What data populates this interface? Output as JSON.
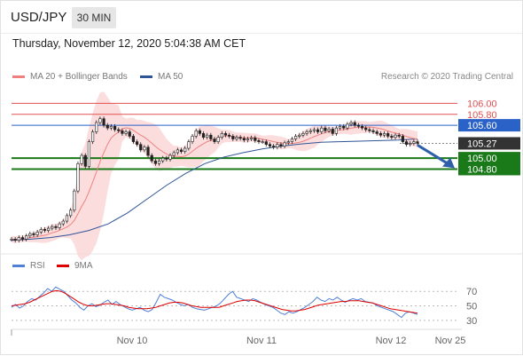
{
  "header": {
    "symbol": "USD/JPY",
    "timeframe": "30 MIN"
  },
  "datetime": "Thursday, November 12, 2020 5:04:38 AM CET",
  "legend": {
    "ma20_label": "MA 20 + Bollinger Bands",
    "ma50_label": "MA 50",
    "credit": "Research © 2020 Trading Central"
  },
  "rsi_legend": {
    "rsi_label": "RSI",
    "ma_label": "9MA"
  },
  "colors": {
    "ma20": "#f08080",
    "ma50": "#2f5597",
    "rsi": "#4f7fd6",
    "rsi_ma": "#dd0000",
    "support": "#1a7a1a",
    "resistance": "#e05050",
    "pivot": "#2a62c8",
    "price": "#333333"
  },
  "chart_data": [
    {
      "type": "line",
      "title": "USD/JPY",
      "ylim": [
        103.3,
        106.25
      ],
      "x_labels": [
        "Nov 10",
        "Nov 11",
        "Nov 12",
        "Nov 25"
      ],
      "close_series": [
        103.52,
        103.5,
        103.55,
        103.52,
        103.58,
        103.62,
        103.6,
        103.65,
        103.7,
        103.68,
        103.72,
        103.75,
        103.73,
        103.8,
        103.85,
        103.95,
        104.05,
        104.4,
        104.9,
        105.05,
        104.85,
        105.3,
        105.48,
        105.65,
        105.72,
        105.6,
        105.55,
        105.58,
        105.52,
        105.5,
        105.45,
        105.48,
        105.4,
        105.3,
        105.25,
        105.15,
        105.2,
        105.05,
        104.95,
        104.9,
        104.95,
        105.0,
        104.98,
        105.05,
        105.1,
        105.15,
        105.12,
        105.18,
        105.3,
        105.4,
        105.5,
        105.45,
        105.38,
        105.42,
        105.35,
        105.3,
        105.38,
        105.45,
        105.42,
        105.4,
        105.35,
        105.38,
        105.36,
        105.33,
        105.35,
        105.37,
        105.32,
        105.3,
        105.3,
        105.25,
        105.22,
        105.2,
        105.25,
        105.22,
        105.28,
        105.3,
        105.35,
        105.4,
        105.42,
        105.45,
        105.48,
        105.5,
        105.52,
        105.48,
        105.55,
        105.5,
        105.53,
        105.45,
        105.55,
        105.58,
        105.55,
        105.62,
        105.65,
        105.6,
        105.58,
        105.55,
        105.52,
        105.5,
        105.48,
        105.45,
        105.42,
        105.45,
        105.4,
        105.38,
        105.42,
        105.4,
        105.3,
        105.25,
        105.27,
        105.3,
        105.27
      ],
      "ma50_series": [
        103.5,
        103.52,
        103.55,
        103.6,
        103.68,
        103.8,
        104.0,
        104.25,
        104.5,
        104.72,
        104.9,
        105.02,
        105.1,
        105.17,
        105.22,
        105.26,
        105.29,
        105.3,
        105.31,
        105.32,
        105.33,
        105.35
      ],
      "bollinger_band_upper_peak": 105.78,
      "bollinger_band_lower_trough": 103.3,
      "levels": [
        {
          "value": 106.0,
          "label": "106.00",
          "kind": "resistance"
        },
        {
          "value": 105.8,
          "label": "105.80",
          "kind": "resistance"
        },
        {
          "value": 105.6,
          "label": "105.60",
          "kind": "pivot"
        },
        {
          "value": 105.27,
          "label": "105.27",
          "kind": "price"
        },
        {
          "value": 105.0,
          "label": "105.00",
          "kind": "support"
        },
        {
          "value": 104.8,
          "label": "104.80",
          "kind": "support"
        }
      ],
      "forecast": {
        "from": 105.27,
        "to": 104.8
      }
    },
    {
      "type": "line",
      "title": "RSI",
      "ylim": [
        20,
        85
      ],
      "y_ticks": [
        70,
        50,
        30
      ],
      "series": [
        {
          "name": "RSI",
          "values": [
            48,
            52,
            47,
            50,
            56,
            60,
            58,
            63,
            68,
            74,
            70,
            76,
            73,
            70,
            64,
            58,
            54,
            48,
            44,
            50,
            53,
            49,
            51,
            55,
            58,
            52,
            56,
            52,
            49,
            46,
            44,
            46,
            48,
            44,
            42,
            45,
            55,
            66,
            62,
            60,
            58,
            55,
            52,
            50,
            52,
            48,
            46,
            45,
            44,
            46,
            48,
            50,
            54,
            60,
            66,
            70,
            62,
            60,
            58,
            56,
            60,
            58,
            55,
            52,
            50,
            48,
            44,
            40,
            38,
            42,
            40,
            42,
            45,
            48,
            52,
            56,
            62,
            58,
            56,
            60,
            58,
            62,
            58,
            55,
            58,
            60,
            58,
            60,
            56,
            55,
            54,
            50,
            48,
            46,
            44,
            42,
            38,
            34,
            40,
            42,
            40,
            38
          ]
        },
        {
          "name": "9MA",
          "values": [
            50,
            51,
            52,
            53,
            55,
            58,
            61,
            64,
            67,
            70,
            71,
            70,
            67,
            63,
            59,
            55,
            52,
            50,
            50,
            51,
            52,
            53,
            53,
            52,
            51,
            50,
            48,
            47,
            46,
            46,
            46,
            47,
            48,
            50,
            52,
            54,
            55,
            55,
            54,
            52,
            50,
            49,
            48,
            48,
            48,
            48,
            48,
            50,
            52,
            54,
            56,
            57,
            58,
            58,
            57,
            55,
            53,
            51,
            49,
            47,
            45,
            44,
            43,
            43,
            44,
            45,
            47,
            49,
            51,
            52,
            53,
            54,
            55,
            56,
            56,
            57,
            57,
            57,
            56,
            55,
            54,
            52,
            50,
            48,
            46,
            45,
            44,
            43,
            42,
            41,
            40
          ]
        }
      ]
    }
  ]
}
